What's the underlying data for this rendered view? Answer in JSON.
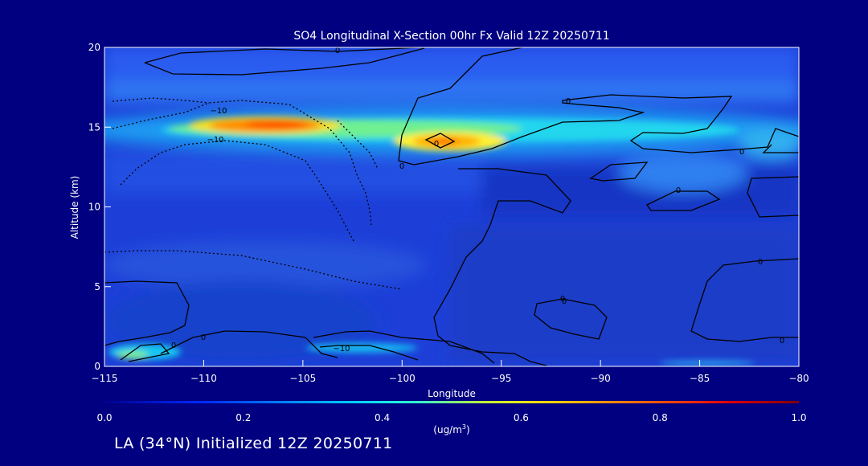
{
  "chart_data": {
    "type": "heatmap",
    "title": "SO4 Longitudinal X-Section 00hr  Fx Valid 12Z 20250711",
    "xlabel": "Longitude",
    "ylabel": "Altitude (km)",
    "xlim": [
      -115,
      -80
    ],
    "ylim": [
      0,
      20
    ],
    "x_ticks": [
      "-115",
      "-110",
      "-105",
      "-100",
      "-95",
      "-90",
      "-85",
      "-80"
    ],
    "y_ticks": [
      "0",
      "5",
      "10",
      "15",
      "20"
    ],
    "colorbar": {
      "range": [
        0.0,
        1.0
      ],
      "ticks": [
        "0.0",
        "0.2",
        "0.4",
        "0.6",
        "0.8",
        "1.0"
      ],
      "label_main": "(ug/m",
      "label_sup": "3",
      "label_end": ")"
    },
    "contour_labels": [
      "0",
      "0",
      "0",
      "0",
      "0",
      "0",
      "0",
      "0",
      "0",
      "-10",
      "-10",
      "-10",
      "0",
      "0",
      "0"
    ],
    "features": [
      {
        "lon": -107,
        "alt": 15.0,
        "value": 0.75
      },
      {
        "lon": -97.5,
        "alt": 14.0,
        "value": 0.65
      },
      {
        "lon": -112,
        "alt": 0.5,
        "value": 0.35
      },
      {
        "lon": -102,
        "alt": 1.0,
        "value": 0.3
      }
    ]
  },
  "footer_text": "LA (34°N) Initialized 12Z 20250711"
}
